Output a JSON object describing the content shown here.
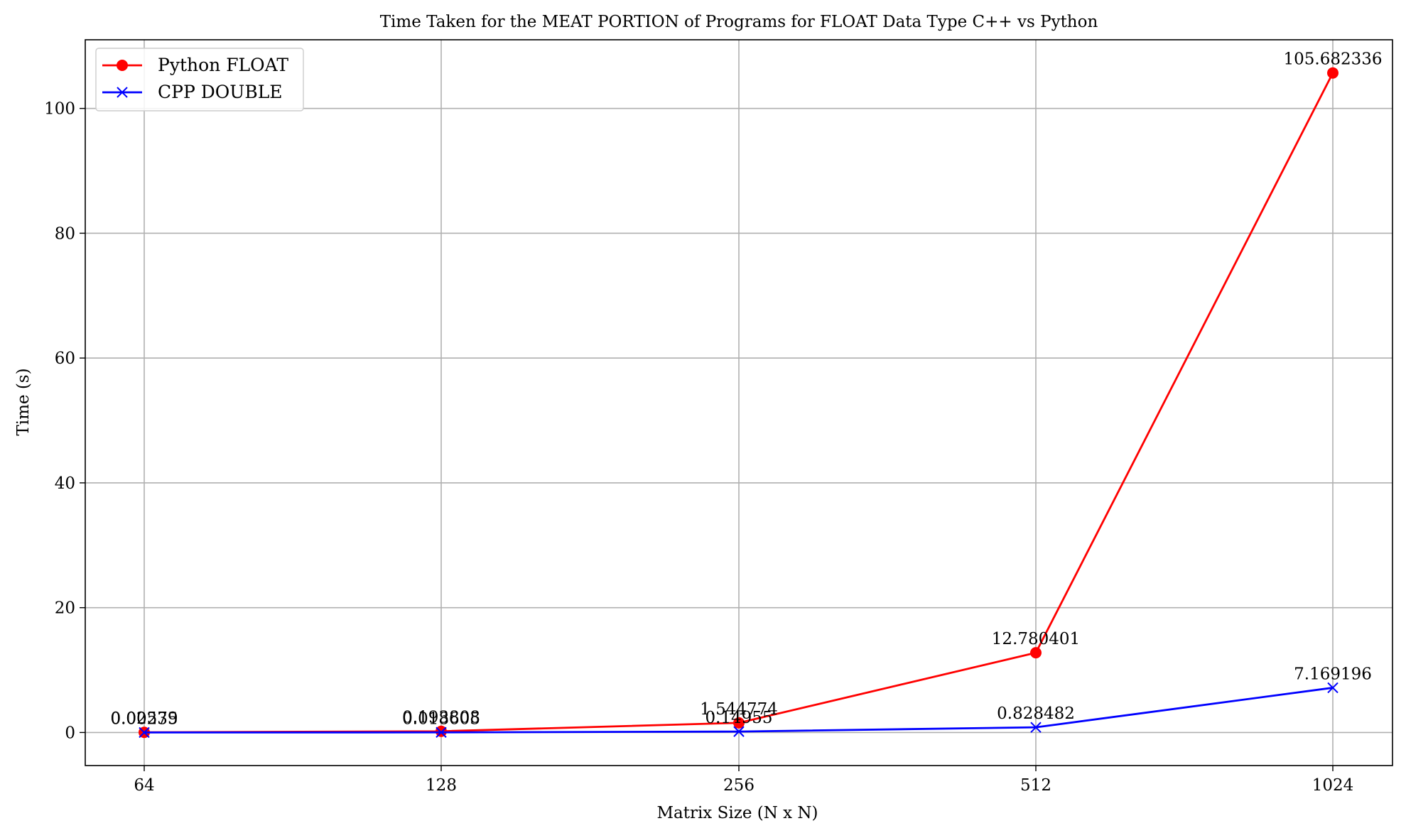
{
  "chart_data": {
    "type": "line",
    "title": "Time Taken for the MEAT PORTION of Programs for FLOAT Data Type C++ vs Python",
    "xlabel": "Matrix Size (N x N)",
    "ylabel": "Time (s)",
    "categories": [
      "64",
      "128",
      "256",
      "512",
      "1024"
    ],
    "yticks": [
      0,
      20,
      40,
      60,
      80,
      100
    ],
    "ylim": [
      -5.3,
      111.0
    ],
    "grid": true,
    "legend_position": "upper-left",
    "series": [
      {
        "name": "Python FLOAT",
        "color": "#ff0000",
        "marker": "circle",
        "values": [
          0.02579,
          0.193808,
          1.544774,
          12.780401,
          105.682336
        ],
        "labels": [
          "0.02579",
          "0.193808",
          "1.544774",
          "12.780401",
          "105.682336"
        ]
      },
      {
        "name": "CPP DOUBLE",
        "color": "#0000ff",
        "marker": "x",
        "values": [
          0.00235,
          0.018605,
          0.14955,
          0.828482,
          7.169196
        ],
        "labels": [
          "0.00235",
          "0.018605",
          "0.14955",
          "0.828482",
          "7.169196"
        ]
      }
    ]
  }
}
